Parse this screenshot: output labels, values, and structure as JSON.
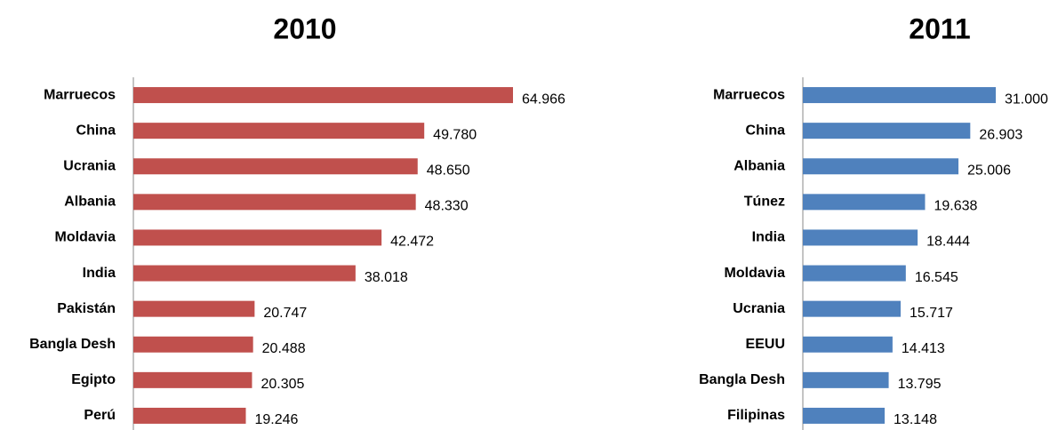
{
  "chart_data": [
    {
      "type": "bar",
      "title": "2010",
      "color": "#c0504d",
      "categories": [
        "Marruecos",
        "China",
        "Ucrania",
        "Albania",
        "Moldavia",
        "India",
        "Pakistán",
        "Bangla Desh",
        "Egipto",
        "Perú"
      ],
      "values": [
        64966,
        49780,
        48650,
        48330,
        42472,
        38018,
        20747,
        20488,
        20305,
        19246
      ],
      "value_labels": [
        "64.966",
        "49.780",
        "48.650",
        "48.330",
        "42.472",
        "38.018",
        "20.747",
        "20.488",
        "20.305",
        "19.246"
      ]
    },
    {
      "type": "bar",
      "title": "2011",
      "color": "#4f81bd",
      "categories": [
        "Marruecos",
        "China",
        "Albania",
        "Túnez",
        "India",
        "Moldavia",
        "Ucrania",
        "EEUU",
        "Bangla Desh",
        "Filipinas"
      ],
      "values": [
        31000,
        26903,
        25006,
        19638,
        18444,
        16545,
        15717,
        14413,
        13795,
        13148
      ],
      "value_labels": [
        "31.000",
        "26.903",
        "25.006",
        "19.638",
        "18.444",
        "16.545",
        "15.717",
        "14.413",
        "13.795",
        "13.148"
      ]
    }
  ]
}
